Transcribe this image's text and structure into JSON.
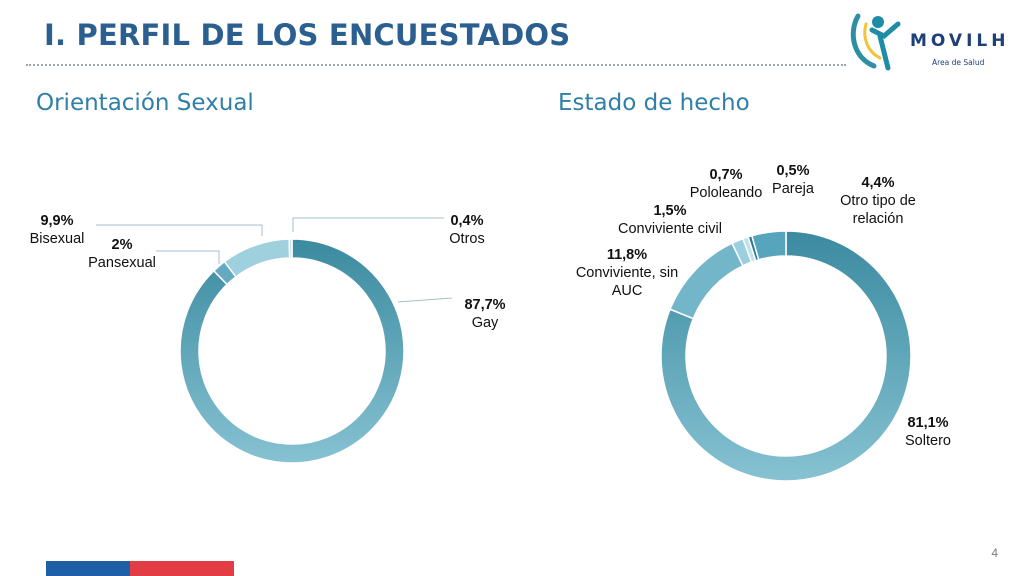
{
  "header": {
    "title": "I. PERFIL DE LOS ENCUESTADOS",
    "logo_text": "MOVILH",
    "logo_subtitle": "Area de Salud"
  },
  "page_number": "4",
  "colors": {
    "accent": "#2f7fa8",
    "title": "#2b5f8f",
    "bar_blue": "#1f5fa7",
    "bar_red": "#e23c45"
  },
  "chart_data": [
    {
      "type": "pie",
      "style": "donut",
      "title": "Orientación Sexual",
      "slices": [
        {
          "label": "Gay",
          "display": "87,7%",
          "value": 87.7,
          "color": "#5da3b8"
        },
        {
          "label": "Pansexual",
          "display": "2%",
          "value": 2.0,
          "color": "#64aac0"
        },
        {
          "label": "Bisexual",
          "display": "9,9%",
          "value": 9.9,
          "color": "#9fd0de"
        },
        {
          "label": "Otros",
          "display": "0,4%",
          "value": 0.4,
          "color": "#c3e3ec"
        }
      ]
    },
    {
      "type": "pie",
      "style": "donut",
      "title": "Estado de hecho",
      "slices": [
        {
          "label": "Soltero",
          "display": "81,1%",
          "value": 81.1,
          "color": "#5da3b8"
        },
        {
          "label": "Conviviente, sin AUC",
          "display": "11,8%",
          "value": 11.8,
          "color": "#74b6c9"
        },
        {
          "label": "Conviviente civil",
          "display": "1,5%",
          "value": 1.5,
          "color": "#9ccfdd"
        },
        {
          "label": "Pololeando",
          "display": "0,7%",
          "value": 0.7,
          "color": "#c0e2ea"
        },
        {
          "label": "Pareja",
          "display": "0,5%",
          "value": 0.5,
          "color": "#2f7a96"
        },
        {
          "label": "Otro tipo de relación",
          "display": "4,4%",
          "value": 4.4,
          "color": "#57a5bd"
        }
      ]
    }
  ]
}
